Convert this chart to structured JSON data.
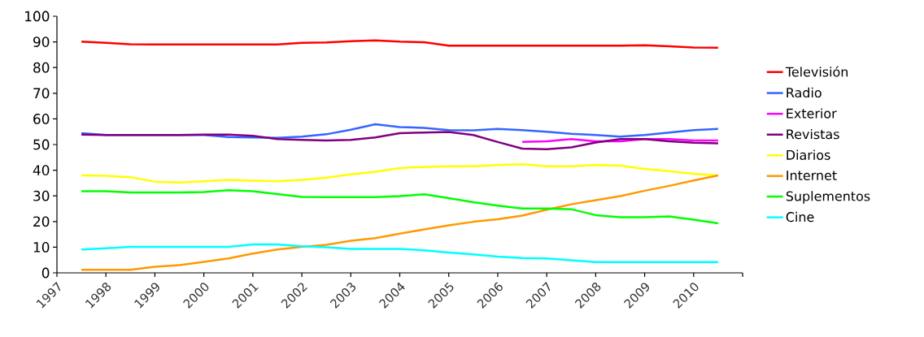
{
  "chart_data": {
    "type": "line",
    "x": [
      1997.5,
      1998,
      1998.5,
      1999,
      1999.5,
      2000,
      2000.5,
      2001,
      2001.5,
      2002,
      2002.5,
      2003,
      2003.5,
      2004,
      2004.5,
      2005,
      2005.5,
      2006,
      2006.5,
      2007,
      2007.5,
      2008,
      2008.5,
      2009,
      2009.5,
      2010,
      2010.5
    ],
    "series": [
      {
        "name": "Televisión",
        "color": "#ff0000",
        "values": [
          90.1,
          89.6,
          89.1,
          89,
          89,
          89,
          89,
          89,
          89,
          89.6,
          89.8,
          90.3,
          90.6,
          90.1,
          89.9,
          88.5,
          88.5,
          88.5,
          88.5,
          88.5,
          88.5,
          88.5,
          88.5,
          88.7,
          88.3,
          87.8,
          87.7
        ]
      },
      {
        "name": "Radio",
        "color": "#3366ff",
        "values": [
          54.4,
          53.7,
          53.7,
          53.7,
          53.7,
          53.7,
          52.9,
          52.8,
          52.6,
          53.1,
          54,
          55.8,
          57.9,
          56.8,
          56.5,
          55.6,
          55.5,
          56.1,
          55.6,
          55,
          54.2,
          53.7,
          53.1,
          53.7,
          54.7,
          55.6,
          56.1
        ]
      },
      {
        "name": "Exterior",
        "color": "#ff00ff",
        "x": [
          2006.5,
          2007,
          2007.5,
          2008,
          2008.5,
          2009,
          2009.5,
          2010,
          2010.5
        ],
        "values": [
          51,
          51.3,
          52.1,
          51.3,
          51.3,
          52.1,
          52.1,
          51.6,
          51.6
        ]
      },
      {
        "name": "Revistas",
        "color": "#800080",
        "values": [
          53.9,
          53.7,
          53.7,
          53.7,
          53.7,
          53.9,
          53.9,
          53.4,
          52.1,
          51.8,
          51.6,
          51.8,
          52.8,
          54.4,
          54.7,
          54.9,
          53.7,
          51,
          48.4,
          48.2,
          48.9,
          50.8,
          52.1,
          52.1,
          51.3,
          50.7,
          50.5
        ]
      },
      {
        "name": "Diarios",
        "color": "#ffff00",
        "values": [
          38,
          37.8,
          37.3,
          35.5,
          35.2,
          35.7,
          36.2,
          35.9,
          35.7,
          36.2,
          37.1,
          38.4,
          39.4,
          40.8,
          41.3,
          41.5,
          41.5,
          42,
          42.3,
          41.5,
          41.5,
          42,
          41.8,
          40.5,
          39.6,
          38.6,
          38
        ]
      },
      {
        "name": "Internet",
        "color": "#ff9900",
        "values": [
          1.2,
          1.2,
          1.2,
          2.4,
          3,
          4.3,
          5.6,
          7.5,
          9.1,
          10.1,
          10.9,
          12.5,
          13.5,
          15.3,
          16.9,
          18.5,
          19.9,
          20.9,
          22.3,
          24.6,
          26.7,
          28.3,
          29.9,
          32,
          33.9,
          36,
          38
        ]
      },
      {
        "name": "Suplementos",
        "color": "#00ff00",
        "values": [
          31.8,
          31.8,
          31.3,
          31.3,
          31.3,
          31.5,
          32.2,
          31.8,
          30.7,
          29.6,
          29.5,
          29.5,
          29.5,
          29.9,
          30.6,
          29.1,
          27.5,
          26.2,
          25.1,
          25.1,
          24.8,
          22.5,
          21.7,
          21.7,
          22,
          20.7,
          19.3
        ]
      },
      {
        "name": "Cine",
        "color": "#00ffff",
        "values": [
          9.1,
          9.6,
          10.1,
          10.1,
          10.1,
          10.1,
          10.1,
          11.1,
          11.1,
          10.4,
          10,
          9.3,
          9.3,
          9.3,
          8.8,
          7.9,
          7.2,
          6.3,
          5.8,
          5.6,
          4.9,
          4.2,
          4.2,
          4.2,
          4.2,
          4.2,
          4.2
        ]
      }
    ],
    "xlim": [
      1997,
      2011
    ],
    "ylim": [
      0,
      100
    ],
    "xticks": [
      1997,
      1998,
      1999,
      2000,
      2001,
      2002,
      2003,
      2004,
      2005,
      2006,
      2007,
      2008,
      2009,
      2010,
      {
        "value": 2011,
        "label": null
      }
    ],
    "yticks": [
      0,
      10,
      20,
      30,
      40,
      50,
      60,
      70,
      80,
      90,
      100
    ],
    "grid": false,
    "legend": "right",
    "marker": "none",
    "line_style": "solid"
  }
}
